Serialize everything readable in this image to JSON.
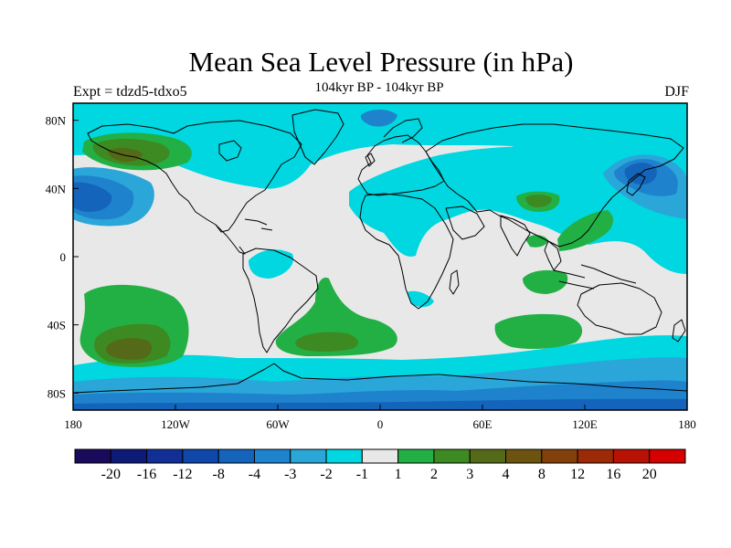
{
  "title": "Mean Sea Level Pressure (in hPa)",
  "subtitle": "104kyr BP - 104kyr BP",
  "left_label": "Expt = tdzd5-tdxo5",
  "right_label": "DJF",
  "map": {
    "lon_range": [
      -180,
      180
    ],
    "lat_range": [
      -90,
      90
    ],
    "background_color": "#e8e8e8",
    "x_ticks": [
      {
        "value": -180,
        "label": "180"
      },
      {
        "value": -120,
        "label": "120W"
      },
      {
        "value": -60,
        "label": "60W"
      },
      {
        "value": 0,
        "label": "0"
      },
      {
        "value": 60,
        "label": "60E"
      },
      {
        "value": 120,
        "label": "120E"
      },
      {
        "value": 180,
        "label": "180"
      }
    ],
    "y_ticks": [
      {
        "value": 80,
        "label": "80N"
      },
      {
        "value": 40,
        "label": "40N"
      },
      {
        "value": 0,
        "label": "0"
      },
      {
        "value": -40,
        "label": "40S"
      },
      {
        "value": -80,
        "label": "80S"
      }
    ]
  },
  "colorbar": {
    "colors": [
      "#1a0a5c",
      "#0d1a78",
      "#122f96",
      "#0f47aa",
      "#1464bc",
      "#1e82cc",
      "#2aa6d9",
      "#00d7e0",
      "#e8e8e8",
      "#22b045",
      "#3e8a22",
      "#546a18",
      "#6c5410",
      "#84400a",
      "#9c2a06",
      "#b81204",
      "#d60000"
    ],
    "labels": [
      "-20",
      "-16",
      "-12",
      "-8",
      "-4",
      "-3",
      "-2",
      "-1",
      "1",
      "2",
      "3",
      "4",
      "8",
      "12",
      "16",
      "20"
    ]
  }
}
